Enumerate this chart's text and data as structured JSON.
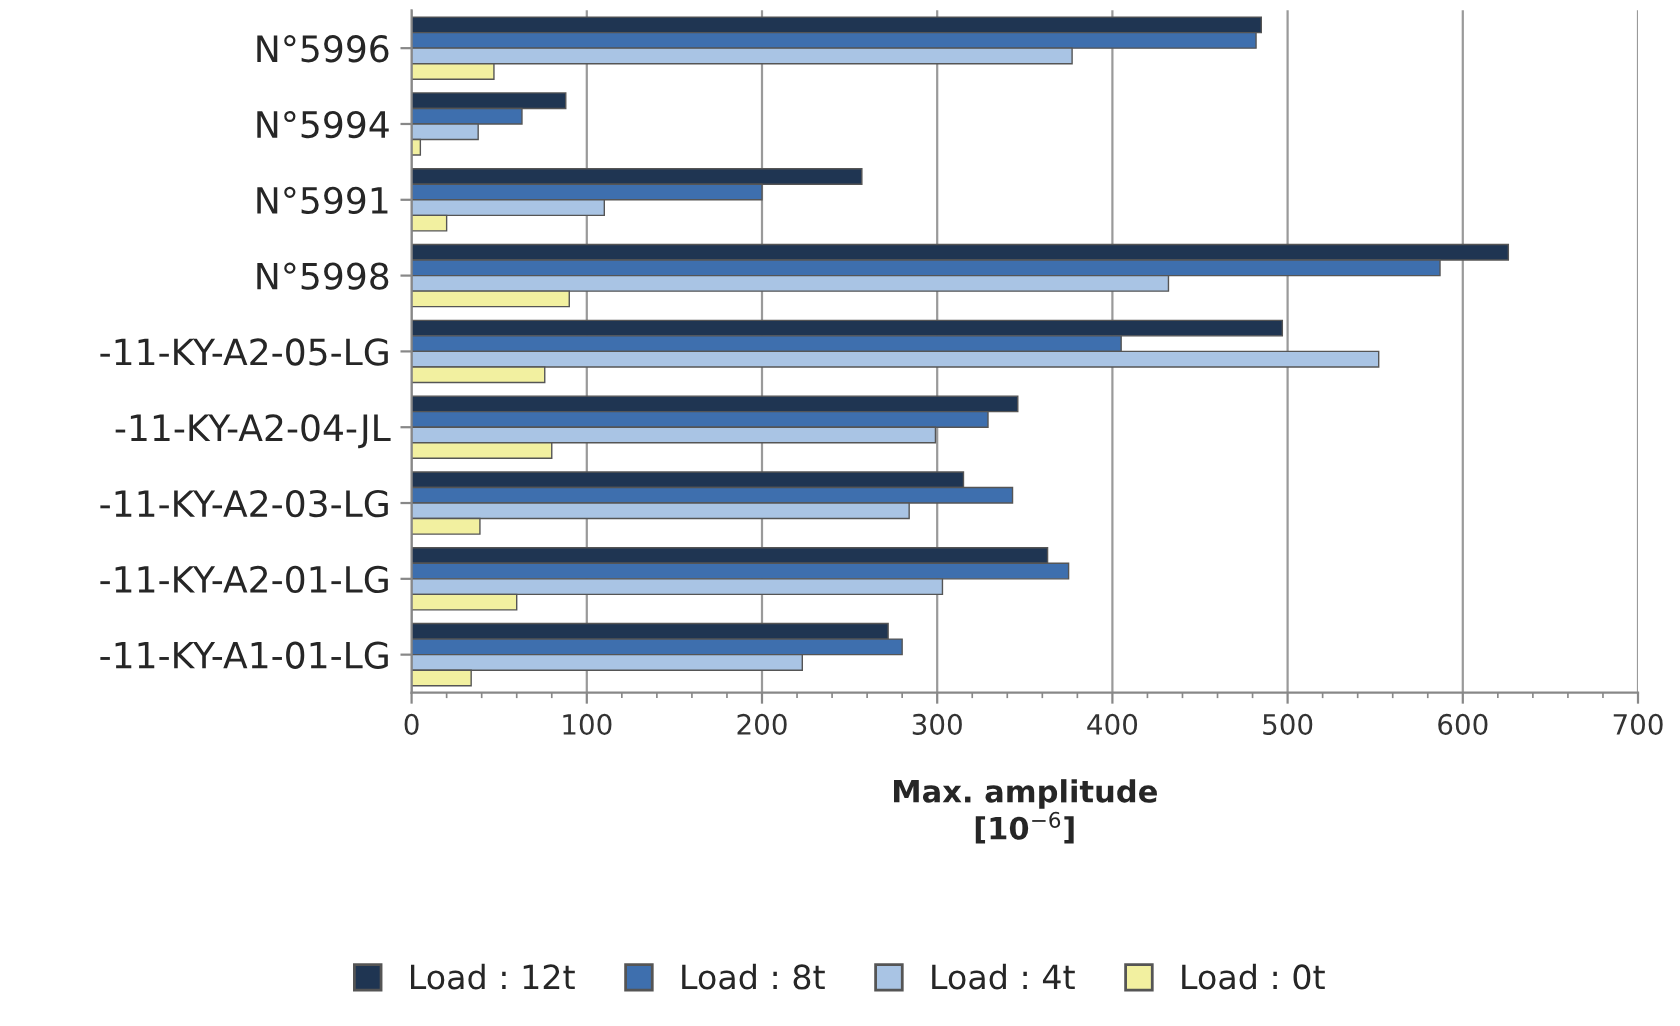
{
  "chart_data": {
    "type": "bar",
    "orientation": "horizontal",
    "xlabel": "Max. amplitude\n[10$^{−6}$]",
    "categories": [
      "N°5996",
      "N°5994",
      "N°5991",
      "N°5998",
      "-11-KY-A2-05-LG",
      "-11-KY-A2-04-JL",
      "-11-KY-A2-03-LG",
      "-11-KY-A2-01-LG",
      "-11-KY-A1-01-LG"
    ],
    "series": [
      {
        "name": "Load : 12t",
        "color": "#1f3552",
        "values": [
          485,
          88,
          257,
          626,
          497,
          346,
          315,
          363,
          272
        ]
      },
      {
        "name": "Load : 8t",
        "color": "#3e6fae",
        "values": [
          482,
          63,
          200,
          587,
          405,
          329,
          343,
          375,
          280
        ]
      },
      {
        "name": "Load : 4t",
        "color": "#a9c4e4",
        "values": [
          377,
          38,
          110,
          432,
          552,
          299,
          284,
          303,
          223
        ]
      },
      {
        "name": "Load : 0t",
        "color": "#f2f0a0",
        "values": [
          47,
          5,
          20,
          90,
          76,
          80,
          39,
          60,
          34
        ]
      }
    ],
    "xlim": [
      0,
      700
    ],
    "xticks": [
      0,
      100,
      200,
      300,
      400,
      500,
      600,
      700
    ],
    "grid": "x",
    "legend": "bottom"
  }
}
